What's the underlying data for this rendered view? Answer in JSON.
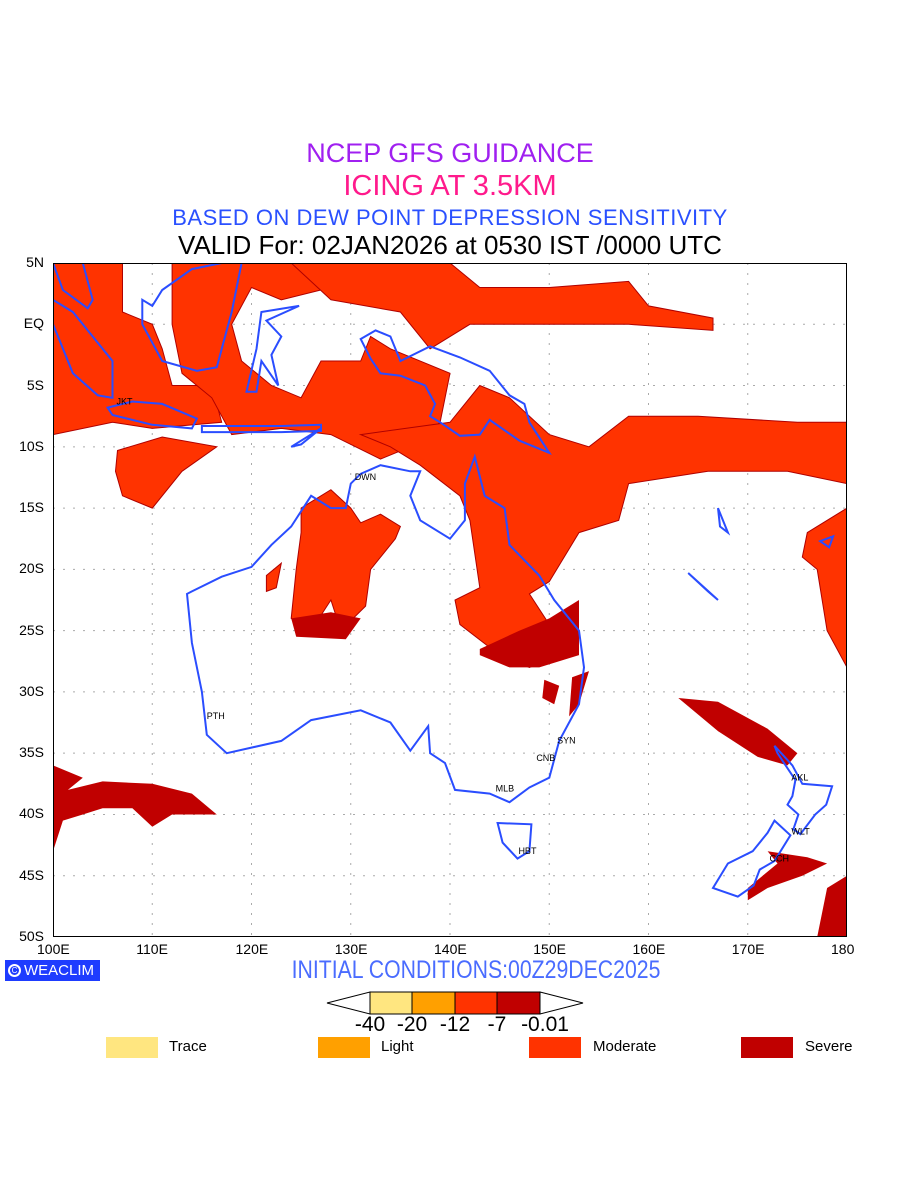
{
  "titles": {
    "line1": "NCEP GFS GUIDANCE",
    "line2": "ICING AT 3.5KM",
    "line3": "BASED ON DEW POINT DEPRESSION SENSITIVITY",
    "line4": "VALID For: 02JAN2026 at 0530 IST /0000 UTC"
  },
  "axes": {
    "x_ticks": [
      {
        "lon": 100,
        "label": "100E"
      },
      {
        "lon": 110,
        "label": "110E"
      },
      {
        "lon": 120,
        "label": "120E"
      },
      {
        "lon": 130,
        "label": "130E"
      },
      {
        "lon": 140,
        "label": "140E"
      },
      {
        "lon": 150,
        "label": "150E"
      },
      {
        "lon": 160,
        "label": "160E"
      },
      {
        "lon": 170,
        "label": "170E"
      },
      {
        "lon": 180,
        "label": "180"
      }
    ],
    "y_ticks": [
      {
        "lat": 5,
        "label": "5N"
      },
      {
        "lat": 0,
        "label": "EQ"
      },
      {
        "lat": -5,
        "label": "5S"
      },
      {
        "lat": -10,
        "label": "10S"
      },
      {
        "lat": -15,
        "label": "15S"
      },
      {
        "lat": -20,
        "label": "20S"
      },
      {
        "lat": -25,
        "label": "25S"
      },
      {
        "lat": -30,
        "label": "30S"
      },
      {
        "lat": -35,
        "label": "35S"
      },
      {
        "lat": -40,
        "label": "40S"
      },
      {
        "lat": -45,
        "label": "45S"
      },
      {
        "lat": -50,
        "label": "50S"
      }
    ],
    "lon_range": [
      100,
      180
    ],
    "lat_range": [
      -50,
      5
    ]
  },
  "cities": [
    {
      "code": "JKT",
      "lon": 106.8,
      "lat": -6.2
    },
    {
      "code": "DWN",
      "lon": 130.8,
      "lat": -12.4
    },
    {
      "code": "PTH",
      "lon": 115.9,
      "lat": -31.9
    },
    {
      "code": "SYN",
      "lon": 151.2,
      "lat": -33.9
    },
    {
      "code": "CNB",
      "lon": 149.1,
      "lat": -35.3
    },
    {
      "code": "MLB",
      "lon": 145.0,
      "lat": -37.8
    },
    {
      "code": "HBT",
      "lon": 147.3,
      "lat": -42.9
    },
    {
      "code": "AKL",
      "lon": 174.8,
      "lat": -36.9
    },
    {
      "code": "WLT",
      "lon": 174.8,
      "lat": -41.3
    },
    {
      "code": "CCH",
      "lon": 172.6,
      "lat": -43.5
    }
  ],
  "branding": {
    "badge": "WEACLIM",
    "badge_icon": "copyright-icon"
  },
  "initial_conditions": "INITIAL CONDITIONS:00Z29DEC2025",
  "colorbar": {
    "labels": [
      "-40",
      "-20",
      "-12",
      "-7",
      "-0.01"
    ],
    "colors": [
      "#ffe680",
      "#ffa000",
      "#ff3300",
      "#c00000"
    ]
  },
  "legend": [
    {
      "label": "Trace",
      "color": "#ffe680"
    },
    {
      "label": "Light",
      "color": "#ffa000"
    },
    {
      "label": "Moderate",
      "color": "#ff3300"
    },
    {
      "label": "Severe",
      "color": "#c00000"
    }
  ],
  "colors": {
    "coast": "#2a4dff",
    "moderate": "#ff3300",
    "severe": "#c00000",
    "grid": "#aaaaaa"
  }
}
